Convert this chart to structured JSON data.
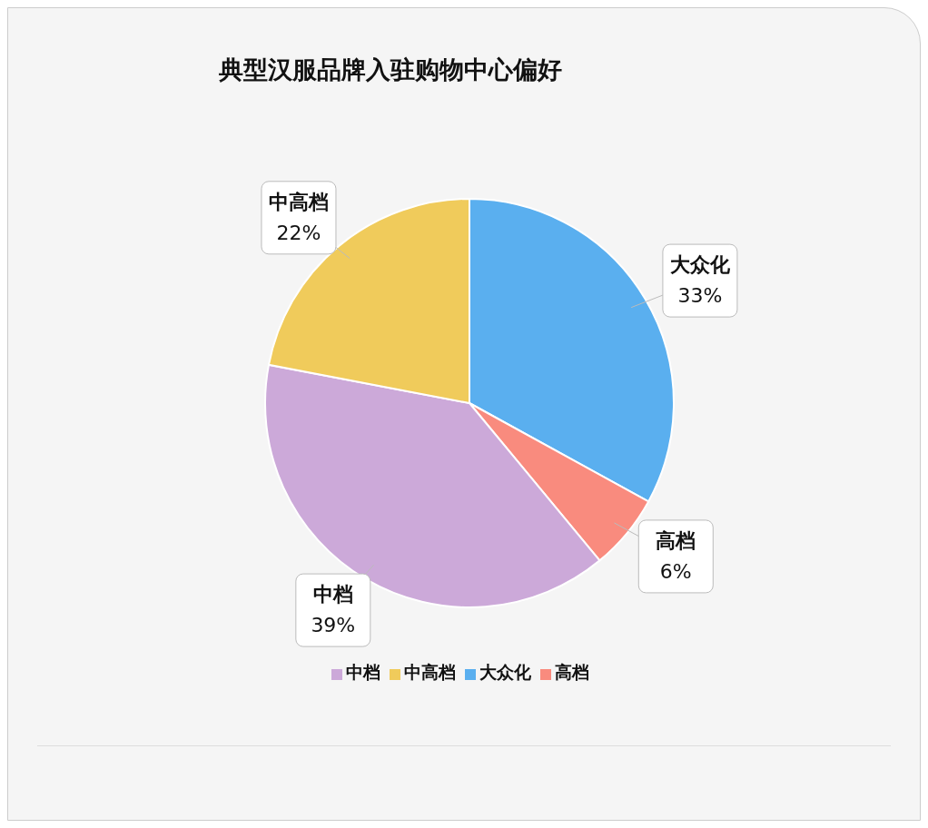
{
  "chart_data": {
    "type": "pie",
    "title": "典型汉服品牌入驻购物中心偏好",
    "categories": [
      "大众化",
      "高档",
      "中档",
      "中高档"
    ],
    "values": [
      33,
      6,
      39,
      22
    ],
    "colors": [
      "#5aafef",
      "#f98b7e",
      "#cca9d9",
      "#f0cb5b"
    ],
    "value_labels": [
      "33%",
      "6%",
      "39%",
      "22%"
    ],
    "legend": "bottom"
  }
}
